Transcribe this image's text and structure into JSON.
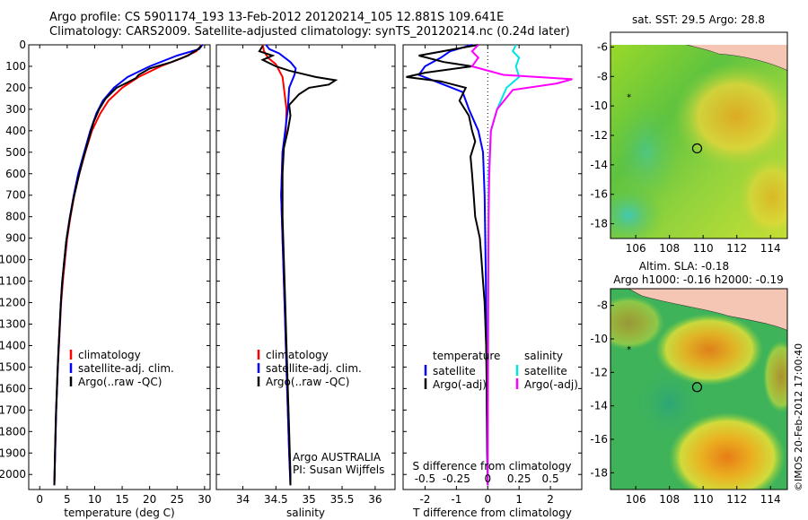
{
  "header": {
    "line1": "Argo profile: CS 5901174_193 13-Feb-2012 20120214_105 12.881S 109.641E",
    "line2": "Climatology: CARS2009. Satellite-adjusted climatology: synTS_20120214.nc (0.24d later)"
  },
  "colors": {
    "climatology": "#ff0000",
    "satellite": "#0000ff",
    "argo": "#000000",
    "sal_sat": "#00e5e5",
    "sal_argo": "#ff00ff"
  },
  "chart_data": [
    {
      "type": "line",
      "id": "temperature",
      "xlabel": "temperature (deg C)",
      "ylabel": "",
      "xlim": [
        -2,
        31
      ],
      "ylim": [
        2070,
        0
      ],
      "xticks": [
        0,
        5,
        10,
        15,
        20,
        25,
        30
      ],
      "yticks": [
        0,
        100,
        200,
        300,
        400,
        500,
        600,
        700,
        800,
        900,
        1000,
        1100,
        1200,
        1300,
        1400,
        1500,
        1600,
        1700,
        1800,
        1900,
        2000
      ],
      "legend": [
        "climatology",
        "satellite-adj. clim.",
        "Argo(..raw -QC)"
      ],
      "series": [
        {
          "name": "climatology",
          "color": "#ff0000",
          "points": [
            [
              29.5,
              0
            ],
            [
              28.5,
              30
            ],
            [
              26,
              60
            ],
            [
              22,
              100
            ],
            [
              18,
              150
            ],
            [
              15,
              200
            ],
            [
              12.5,
              260
            ],
            [
              11,
              320
            ],
            [
              9.5,
              400
            ],
            [
              8.3,
              500
            ],
            [
              7.2,
              600
            ],
            [
              6.3,
              700
            ],
            [
              5.6,
              800
            ],
            [
              5.0,
              900
            ],
            [
              4.6,
              1000
            ],
            [
              4.2,
              1100
            ],
            [
              3.9,
              1200
            ],
            [
              3.7,
              1300
            ],
            [
              3.5,
              1400
            ],
            [
              3.3,
              1500
            ],
            [
              3.15,
              1600
            ],
            [
              3.0,
              1700
            ],
            [
              2.9,
              1800
            ],
            [
              2.8,
              1900
            ],
            [
              2.7,
              2000
            ],
            [
              2.65,
              2050
            ]
          ]
        },
        {
          "name": "satellite-adj. clim.",
          "color": "#0000ff",
          "points": [
            [
              29.6,
              0
            ],
            [
              29,
              20
            ],
            [
              25,
              50
            ],
            [
              20,
              100
            ],
            [
              16,
              150
            ],
            [
              13.5,
              200
            ],
            [
              11.5,
              260
            ],
            [
              10.3,
              320
            ],
            [
              9.2,
              400
            ],
            [
              8.1,
              500
            ],
            [
              7.0,
              600
            ],
            [
              6.2,
              700
            ],
            [
              5.5,
              800
            ],
            [
              4.9,
              900
            ],
            [
              4.5,
              1000
            ],
            [
              4.1,
              1100
            ],
            [
              3.85,
              1200
            ],
            [
              3.65,
              1300
            ],
            [
              3.45,
              1400
            ],
            [
              3.3,
              1500
            ],
            [
              3.15,
              1600
            ],
            [
              3.0,
              1700
            ],
            [
              2.9,
              1800
            ],
            [
              2.8,
              1900
            ],
            [
              2.7,
              2000
            ],
            [
              2.65,
              2050
            ]
          ]
        },
        {
          "name": "Argo(..raw -QC)",
          "color": "#000000",
          "points": [
            [
              29.4,
              5
            ],
            [
              28.8,
              20
            ],
            [
              27,
              50
            ],
            [
              24,
              80
            ],
            [
              20,
              110
            ],
            [
              18,
              140
            ],
            [
              17.5,
              155
            ],
            [
              16,
              175
            ],
            [
              14,
              200
            ],
            [
              12,
              250
            ],
            [
              10.8,
              300
            ],
            [
              9.8,
              360
            ],
            [
              8.8,
              450
            ],
            [
              7.9,
              530
            ],
            [
              7.0,
              620
            ],
            [
              6.1,
              720
            ],
            [
              5.4,
              820
            ],
            [
              4.8,
              920
            ],
            [
              4.4,
              1020
            ],
            [
              4.05,
              1120
            ],
            [
              3.8,
              1220
            ],
            [
              3.6,
              1320
            ],
            [
              3.4,
              1420
            ],
            [
              3.25,
              1520
            ],
            [
              3.1,
              1620
            ],
            [
              2.95,
              1720
            ],
            [
              2.85,
              1820
            ],
            [
              2.75,
              1920
            ],
            [
              2.7,
              2000
            ],
            [
              2.65,
              2050
            ]
          ]
        }
      ]
    },
    {
      "type": "line",
      "id": "salinity",
      "xlabel": "salinity",
      "xlim": [
        33.6,
        36.3
      ],
      "ylim": [
        2070,
        0
      ],
      "xticks": [
        34,
        34.5,
        35,
        35.5,
        36
      ],
      "legend": [
        "climatology",
        "satellite-adj. clim.",
        "Argo(..raw -QC)"
      ],
      "annotation": [
        "Argo AUSTRALIA",
        "PI: Susan Wijffels"
      ],
      "series": [
        {
          "name": "climatology",
          "color": "#ff0000",
          "points": [
            [
              34.3,
              0
            ],
            [
              34.32,
              30
            ],
            [
              34.38,
              60
            ],
            [
              34.5,
              90
            ],
            [
              34.55,
              120
            ],
            [
              34.6,
              150
            ],
            [
              34.62,
              200
            ],
            [
              34.66,
              300
            ],
            [
              34.65,
              400
            ],
            [
              34.6,
              500
            ],
            [
              34.58,
              700
            ],
            [
              34.6,
              900
            ],
            [
              34.62,
              1100
            ],
            [
              34.64,
              1300
            ],
            [
              34.66,
              1500
            ],
            [
              34.68,
              1700
            ],
            [
              34.7,
              1900
            ],
            [
              34.72,
              2050
            ]
          ]
        },
        {
          "name": "satellite-adj. clim.",
          "color": "#0000ff",
          "points": [
            [
              34.35,
              0
            ],
            [
              34.4,
              20
            ],
            [
              34.55,
              40
            ],
            [
              34.72,
              80
            ],
            [
              34.8,
              110
            ],
            [
              34.78,
              140
            ],
            [
              34.7,
              200
            ],
            [
              34.68,
              300
            ],
            [
              34.64,
              400
            ],
            [
              34.6,
              500
            ],
            [
              34.58,
              700
            ],
            [
              34.6,
              900
            ],
            [
              34.62,
              1100
            ],
            [
              34.64,
              1300
            ],
            [
              34.66,
              1500
            ],
            [
              34.68,
              1700
            ],
            [
              34.7,
              1900
            ],
            [
              34.72,
              2050
            ]
          ]
        },
        {
          "name": "Argo(..raw -QC)",
          "color": "#000000",
          "points": [
            [
              34.3,
              5
            ],
            [
              34.25,
              30
            ],
            [
              34.45,
              50
            ],
            [
              34.3,
              70
            ],
            [
              34.5,
              100
            ],
            [
              34.7,
              120
            ],
            [
              34.9,
              135
            ],
            [
              35.1,
              150
            ],
            [
              35.4,
              165
            ],
            [
              35.3,
              185
            ],
            [
              35.0,
              200
            ],
            [
              34.85,
              230
            ],
            [
              34.7,
              280
            ],
            [
              34.72,
              330
            ],
            [
              34.68,
              400
            ],
            [
              34.62,
              480
            ],
            [
              34.6,
              600
            ],
            [
              34.6,
              800
            ],
            [
              34.62,
              1000
            ],
            [
              34.64,
              1200
            ],
            [
              34.66,
              1400
            ],
            [
              34.68,
              1600
            ],
            [
              34.7,
              1800
            ],
            [
              34.72,
              2000
            ],
            [
              34.72,
              2050
            ]
          ]
        }
      ]
    },
    {
      "type": "line",
      "id": "difference",
      "xlabel": "T difference from climatology",
      "xlabel2": "S difference from climatology",
      "xlim": [
        -2.7,
        3.0
      ],
      "ylim": [
        2070,
        0
      ],
      "xticks": [
        -2,
        -1,
        0,
        1,
        2
      ],
      "xticks_s": [
        "-0.5",
        "-0.25",
        "0",
        "0.25",
        "0.5"
      ],
      "legend_headers": [
        "temperature",
        "salinity"
      ],
      "legend": [
        "satellite",
        "Argo(-adj)",
        "satellite",
        "Argo(-adj)"
      ],
      "series": [
        {
          "name": "temperature satellite",
          "color": "#0000ff",
          "points": [
            [
              -0.5,
              0
            ],
            [
              -1.2,
              30
            ],
            [
              -1.5,
              60
            ],
            [
              -2.0,
              100
            ],
            [
              -2.2,
              140
            ],
            [
              -1.5,
              180
            ],
            [
              -0.8,
              220
            ],
            [
              -0.6,
              300
            ],
            [
              -0.3,
              400
            ],
            [
              -0.15,
              500
            ],
            [
              -0.1,
              700
            ],
            [
              -0.08,
              900
            ],
            [
              -0.06,
              1100
            ],
            [
              -0.05,
              1300
            ],
            [
              -0.04,
              1500
            ],
            [
              -0.03,
              1700
            ],
            [
              -0.02,
              1900
            ],
            [
              0,
              2050
            ]
          ]
        },
        {
          "name": "temperature Argo(-adj)",
          "color": "#000000",
          "points": [
            [
              -0.3,
              0
            ],
            [
              -2.2,
              50
            ],
            [
              -1.4,
              80
            ],
            [
              -0.5,
              100
            ],
            [
              -2.0,
              130
            ],
            [
              -2.6,
              150
            ],
            [
              -1.5,
              170
            ],
            [
              -0.7,
              200
            ],
            [
              -0.9,
              260
            ],
            [
              -0.6,
              330
            ],
            [
              -0.5,
              400
            ],
            [
              -0.4,
              450
            ],
            [
              -0.55,
              520
            ],
            [
              -0.5,
              600
            ],
            [
              -0.45,
              700
            ],
            [
              -0.4,
              800
            ],
            [
              -0.25,
              900
            ],
            [
              -0.2,
              1000
            ],
            [
              -0.15,
              1100
            ],
            [
              -0.1,
              1200
            ],
            [
              -0.05,
              1400
            ],
            [
              -0.03,
              1600
            ],
            [
              -0.02,
              1800
            ],
            [
              0,
              2050
            ]
          ]
        },
        {
          "name": "salinity satellite",
          "color": "#00e5e5",
          "points": [
            [
              0.9,
              0
            ],
            [
              0.8,
              30
            ],
            [
              1.0,
              60
            ],
            [
              0.9,
              100
            ],
            [
              1.0,
              150
            ],
            [
              0.6,
              200
            ],
            [
              0.3,
              300
            ],
            [
              0.1,
              400
            ],
            [
              0.03,
              600
            ],
            [
              0.02,
              800
            ],
            [
              0.01,
              1000
            ],
            [
              0.01,
              1500
            ],
            [
              0,
              2050
            ]
          ]
        },
        {
          "name": "salinity Argo(-adj)",
          "color": "#ff00ff",
          "points": [
            [
              -0.3,
              0
            ],
            [
              -0.5,
              30
            ],
            [
              -0.3,
              60
            ],
            [
              -0.5,
              100
            ],
            [
              0.5,
              140
            ],
            [
              2.7,
              160
            ],
            [
              2.2,
              180
            ],
            [
              0.8,
              210
            ],
            [
              0.3,
              300
            ],
            [
              0.1,
              400
            ],
            [
              0.05,
              600
            ],
            [
              0.03,
              800
            ],
            [
              0.02,
              1000
            ],
            [
              0.01,
              1500
            ],
            [
              0,
              2050
            ]
          ]
        }
      ]
    },
    {
      "type": "heatmap",
      "id": "sst_map",
      "title": "sat. SST: 29.5  Argo: 28.8",
      "xlim": [
        104.5,
        115
      ],
      "ylim": [
        -19,
        -5
      ],
      "xticks": [
        106,
        108,
        110,
        112,
        114
      ],
      "yticks": [
        -6,
        -8,
        -10,
        -12,
        -14,
        -16,
        -18
      ],
      "marker": [
        109.641,
        -12.881
      ]
    },
    {
      "type": "heatmap",
      "id": "sla_map",
      "title": "Altim. SLA: -0.18",
      "subtitle": "Argo h1000: -0.16 h2000: -0.19",
      "xlim": [
        104.5,
        115
      ],
      "ylim": [
        -19,
        -7
      ],
      "xticks": [
        106,
        108,
        110,
        112,
        114
      ],
      "yticks": [
        -8,
        -10,
        -12,
        -14,
        -16,
        -18
      ],
      "marker": [
        109.641,
        -12.881
      ]
    }
  ],
  "footer": {
    "credit": "©IMOS 20-Feb-2012 17:00:40"
  }
}
